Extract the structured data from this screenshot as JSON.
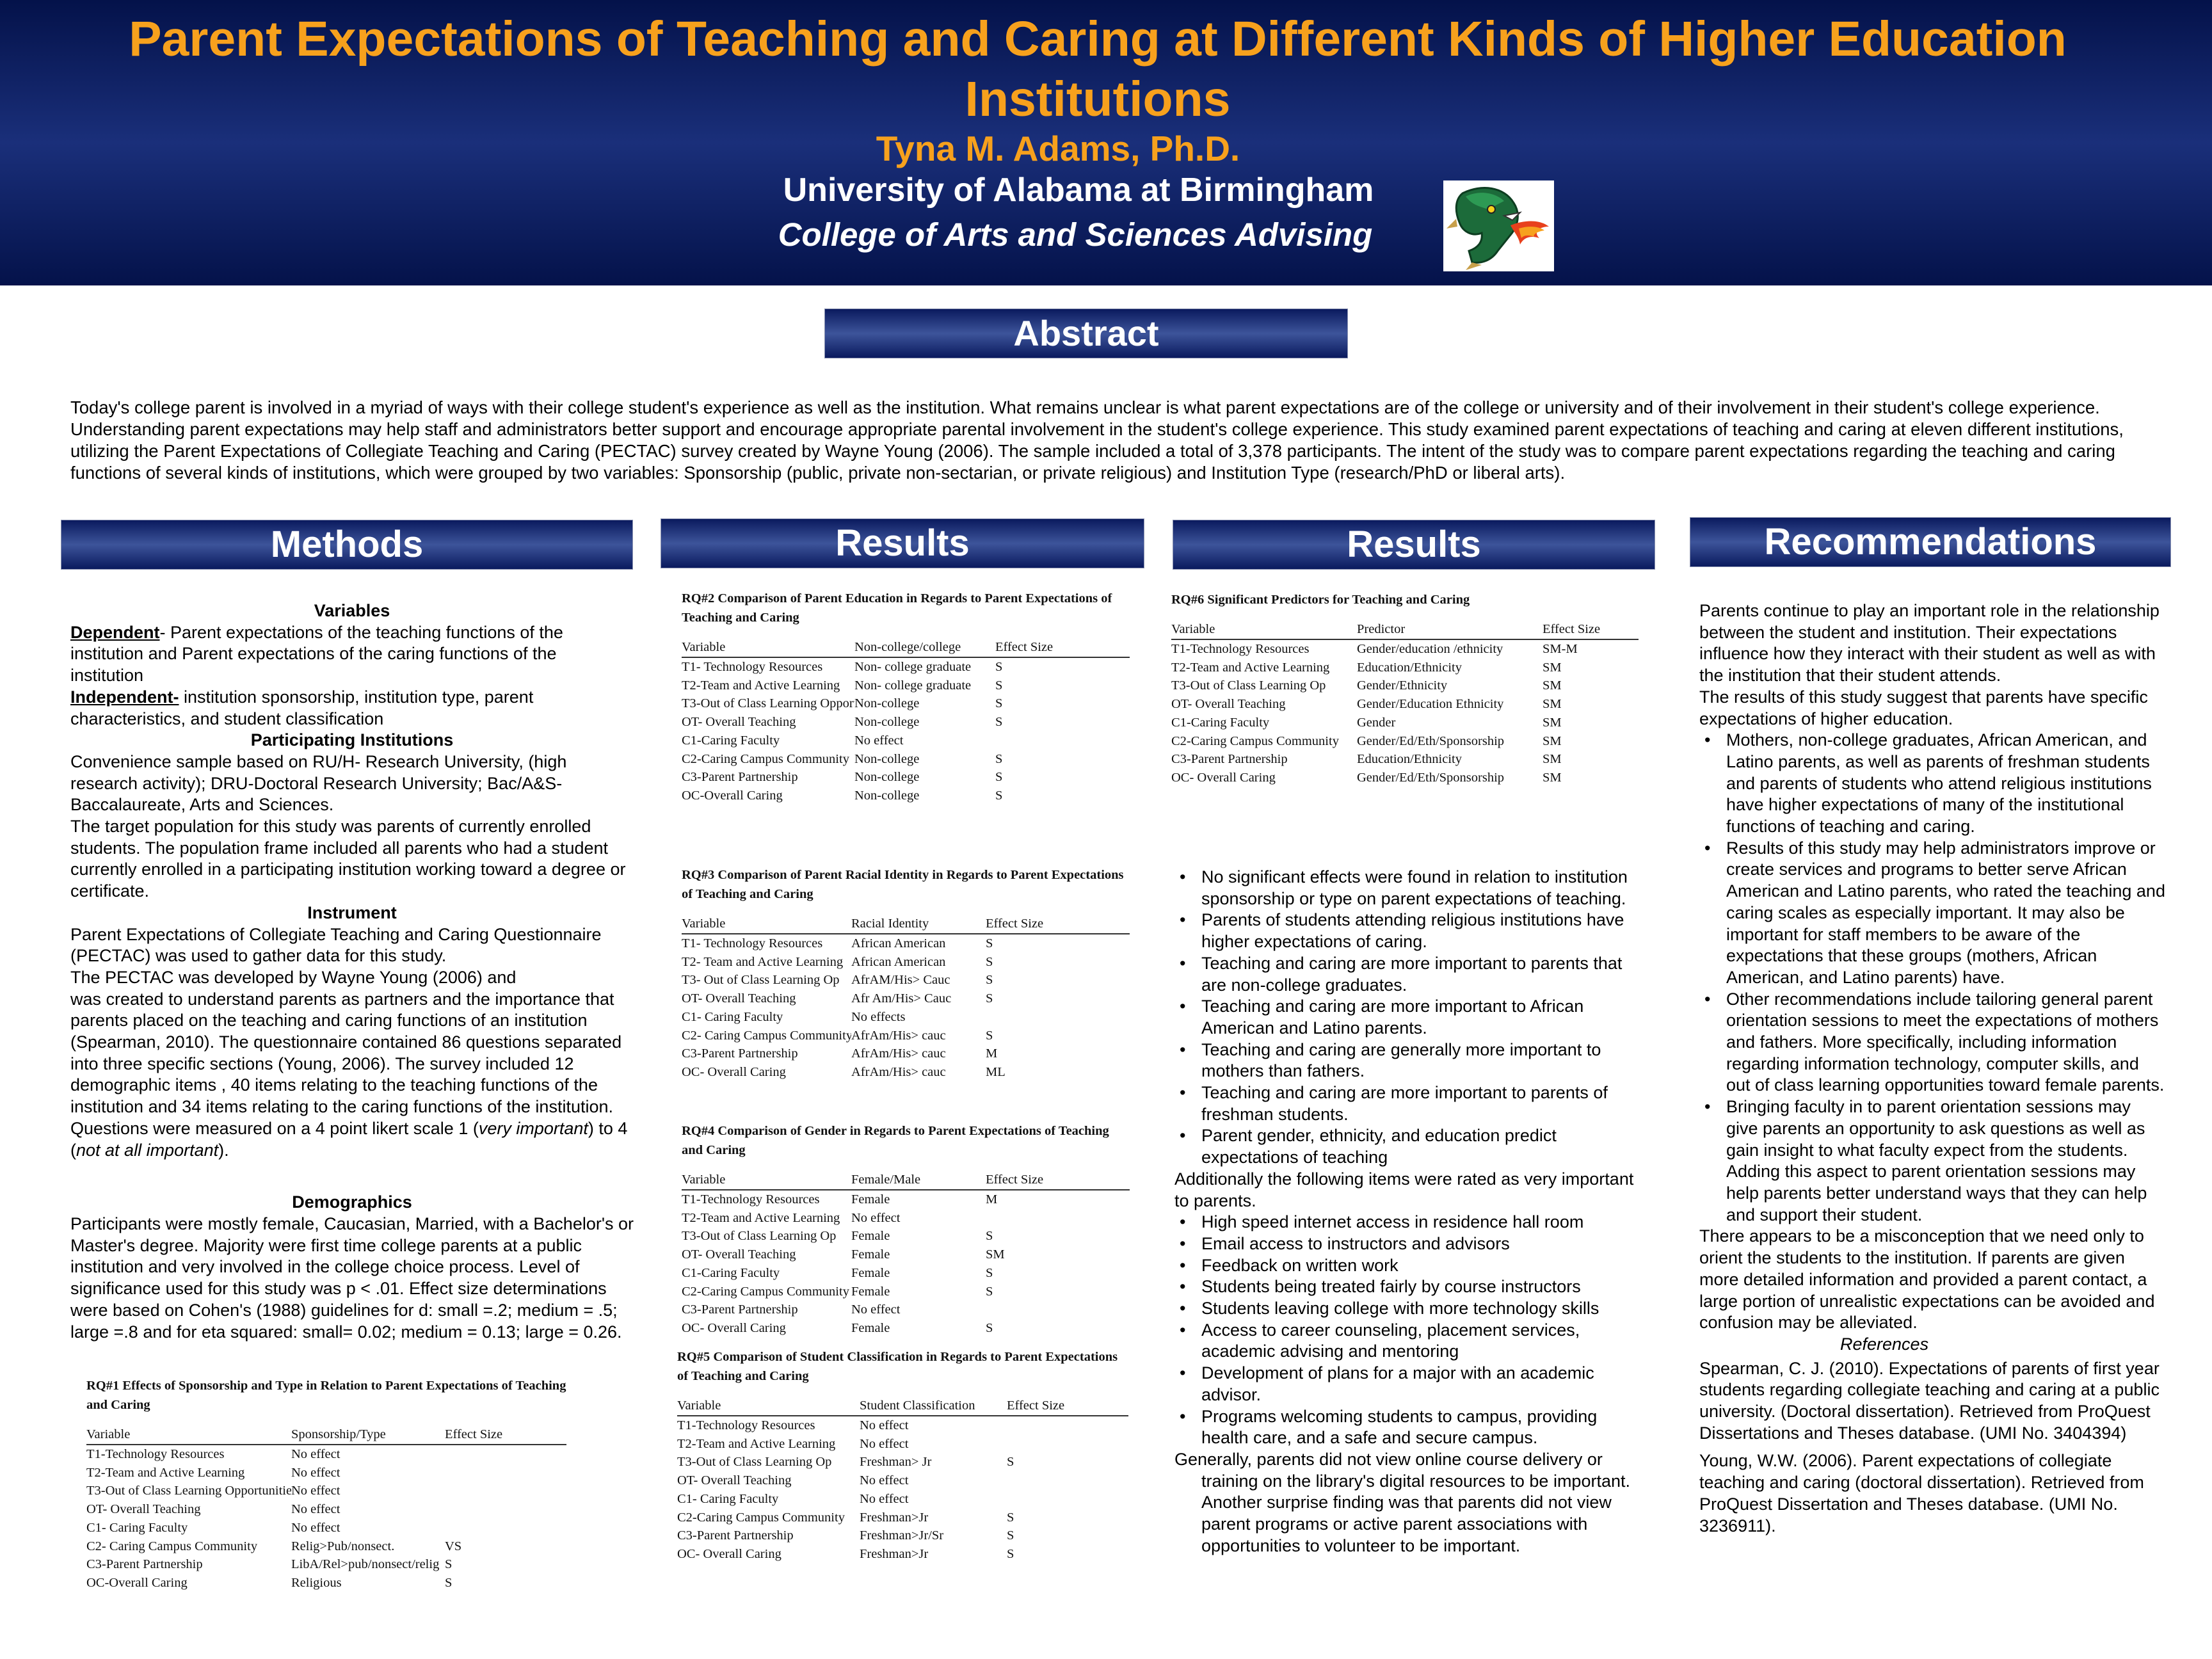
{
  "header": {
    "title": "Parent Expectations of Teaching and Caring at Different Kinds of Higher Education Institutions",
    "author": "Tyna M. Adams, Ph.D.",
    "university": "University of Alabama at Birmingham",
    "college": "College of Arts and Sciences Advising",
    "logo_icon": "dragon-logo-icon"
  },
  "sections": {
    "abstract_title": "Abstract",
    "abstract_text": "Today's college parent is involved in a myriad of ways with their college student's experience as well as the institution. What remains unclear is what parent expectations are of the college or university and of their involvement in their student's college experience. Understanding parent expectations may help staff and administrators better support and encourage appropriate parental involvement in the student's college experience. This study examined parent expectations of teaching and caring at eleven different institutions, utilizing the Parent Expectations of Collegiate Teaching and Caring (PECTAC) survey created by Wayne Young (2006). The sample included a total of 3,378 participants. The intent of the study was to compare parent expectations regarding the teaching and caring functions of several kinds of institutions, which were grouped by two variables: Sponsorship (public, private non-sectarian, or private religious) and Institution Type (research/PhD or liberal arts).",
    "methods_title": "Methods",
    "results_title_1": "Results",
    "results_title_2": "Results",
    "recommendations_title": "Recommendations"
  },
  "methods": {
    "variables_heading": "Variables",
    "dependent_label": "Dependent",
    "dependent_text": "- Parent expectations of the teaching functions of the institution and Parent expectations of the caring functions of the institution",
    "independent_label": "Independent-",
    "independent_text": " institution sponsorship, institution type, parent characteristics, and student classification",
    "participating_heading": "Participating Institutions",
    "participating_text": "Convenience sample based on RU/H- Research University, (high research activity); DRU-Doctoral Research University; Bac/A&S- Baccalaureate, Arts and Sciences.",
    "target_text": "The target population for this study was parents of currently enrolled students. The population frame included all parents who had a student currently enrolled in a participating institution working toward a degree or certificate.",
    "instrument_heading": "Instrument",
    "instrument_p1": " Parent Expectations of Collegiate Teaching and Caring Questionnaire (PECTAC) was used to gather data for this study.",
    "instrument_p2": "The PECTAC was developed by Wayne Young (2006) and",
    "instrument_p3": " was created to understand parents as partners and the importance that parents placed on the teaching and caring functions of an institution (Spearman, 2010). The questionnaire contained 86 questions separated into three specific sections (Young, 2006). The survey included 12 demographic items , 40 items relating to the teaching functions of the institution and 34 items relating to the caring functions of the institution. Questions were measured on a 4 point likert scale 1 (",
    "instrument_em1": "very important",
    "instrument_p4": ") to 4 (",
    "instrument_em2": "not at all important",
    "instrument_p5": ").",
    "demographics_heading": "Demographics",
    "demographics_text": "Participants were mostly female, Caucasian, Married, with a Bachelor's or Master's degree. Majority were first time college parents at a public institution and very involved in the college choice process.  Level of significance used for this study was p < .01. Effect size determinations were based on Cohen's (1988) guidelines for d: small =.2; medium = .5; large =.8 and for eta squared: small= 0.02; medium = 0.13; large = 0.26."
  },
  "tables": {
    "rq1": {
      "caption": "RQ#1 Effects of Sponsorship and Type in Relation to Parent Expectations of Teaching and Caring",
      "headers": [
        "Variable",
        "Sponsorship/Type",
        "Effect Size"
      ],
      "rows": [
        [
          "T1-Technology Resources",
          "No effect",
          ""
        ],
        [
          "T2-Team and Active Learning",
          "No effect",
          ""
        ],
        [
          "T3-Out of Class Learning Opportunities",
          "No effect",
          ""
        ],
        [
          "OT- Overall Teaching",
          "No effect",
          ""
        ],
        [
          "C1- Caring Faculty",
          "No effect",
          ""
        ],
        [
          "C2- Caring Campus Community",
          "Relig>Pub/nonsect.",
          "VS"
        ],
        [
          "C3-Parent Partnership",
          "LibA/Rel>pub/nonsect/relig",
          "S"
        ],
        [
          "OC-Overall Caring",
          "Religious",
          "S"
        ]
      ]
    },
    "rq2": {
      "caption": "RQ#2 Comparison of Parent Education in Regards to Parent Expectations of Teaching and Caring",
      "headers": [
        "Variable",
        "Non-college/college",
        "Effect Size"
      ],
      "rows": [
        [
          "T1- Technology Resources",
          "Non- college graduate",
          "S"
        ],
        [
          "T2-Team and Active Learning",
          "Non- college graduate",
          "S"
        ],
        [
          "T3-Out of Class Learning Opportunities",
          "Non-college",
          "S"
        ],
        [
          "OT- Overall Teaching",
          "Non-college",
          "S"
        ],
        [
          "C1-Caring Faculty",
          "No effect",
          ""
        ],
        [
          "C2-Caring Campus Community",
          "Non-college",
          "S"
        ],
        [
          "C3-Parent Partnership",
          "Non-college",
          "S"
        ],
        [
          "OC-Overall Caring",
          "Non-college",
          "S"
        ]
      ]
    },
    "rq3": {
      "caption": "RQ#3 Comparison of Parent Racial Identity in Regards to Parent Expectations of Teaching and Caring",
      "headers": [
        "Variable",
        "Racial Identity",
        "Effect Size"
      ],
      "rows": [
        [
          "T1- Technology Resources",
          "African American",
          "S"
        ],
        [
          "T2- Team and Active Learning",
          "African American",
          "S"
        ],
        [
          "T3- Out of Class Learning Op",
          "AfrAM/His> Cauc",
          "S"
        ],
        [
          "OT- Overall Teaching",
          "Afr Am/His> Cauc",
          "S"
        ],
        [
          "C1- Caring Faculty",
          "No effects",
          ""
        ],
        [
          "C2- Caring Campus Community",
          "AfrAm/His> cauc",
          "S"
        ],
        [
          "C3-Parent Partnership",
          "AfrAm/His> cauc",
          "M"
        ],
        [
          "OC- Overall Caring",
          "AfrAm/His> cauc",
          "ML"
        ]
      ]
    },
    "rq4": {
      "caption": "RQ#4 Comparison of Gender in Regards to Parent Expectations of Teaching and Caring",
      "headers": [
        "Variable",
        "Female/Male",
        "Effect Size"
      ],
      "rows": [
        [
          "T1-Technology Resources",
          "Female",
          "M"
        ],
        [
          "T2-Team and Active Learning",
          "No effect",
          ""
        ],
        [
          "T3-Out of Class Learning Op",
          "Female",
          "S"
        ],
        [
          "OT- Overall Teaching",
          "Female",
          "SM"
        ],
        [
          "C1-Caring Faculty",
          "Female",
          "S"
        ],
        [
          "C2-Caring Campus Community",
          "Female",
          "S"
        ],
        [
          "C3-Parent Partnership",
          "No effect",
          ""
        ],
        [
          "OC- Overall Caring",
          "Female",
          "S"
        ]
      ]
    },
    "rq5": {
      "caption": "RQ#5 Comparison of Student Classification in Regards to Parent Expectations of Teaching and Caring",
      "headers": [
        "Variable",
        "Student Classification",
        "Effect Size"
      ],
      "rows": [
        [
          "T1-Technology Resources",
          "No effect",
          ""
        ],
        [
          "T2-Team and Active Learning",
          "No effect",
          ""
        ],
        [
          "T3-Out of Class Learning Op",
          "Freshman> Jr",
          "S"
        ],
        [
          "OT- Overall Teaching",
          "No effect",
          ""
        ],
        [
          "C1- Caring Faculty",
          "No effect",
          ""
        ],
        [
          "C2-Caring Campus Community",
          "Freshman>Jr",
          "S"
        ],
        [
          "C3-Parent Partnership",
          "Freshman>Jr/Sr",
          "S"
        ],
        [
          "OC- Overall Caring",
          "Freshman>Jr",
          "S"
        ]
      ]
    },
    "rq6": {
      "caption": "RQ#6 Significant Predictors for Teaching and Caring",
      "headers": [
        "Variable",
        "Predictor",
        "Effect Size"
      ],
      "rows": [
        [
          "T1-Technology Resources",
          "Gender/education /ethnicity",
          "SM-M"
        ],
        [
          "T2-Team and Active Learning",
          "Education/Ethnicity",
          "SM"
        ],
        [
          "T3-Out of Class Learning Op",
          "Gender/Ethnicity",
          "SM"
        ],
        [
          "OT- Overall Teaching",
          "Gender/Education Ethnicity",
          "SM"
        ],
        [
          "C1-Caring Faculty",
          "Gender",
          "SM"
        ],
        [
          "C2-Caring Campus Community",
          "Gender/Ed/Eth/Sponsorship",
          "SM"
        ],
        [
          "C3-Parent Partnership",
          "Education/Ethnicity",
          "SM"
        ],
        [
          "OC- Overall Caring",
          "Gender/Ed/Eth/Sponsorship",
          "SM"
        ]
      ]
    }
  },
  "results2": {
    "bullets_a": [
      "No significant effects were found  in relation to institution sponsorship or type on parent expectations of teaching.",
      "Parents of students attending religious institutions have higher expectations of caring.",
      "Teaching and caring are more important to parents that are non-college graduates.",
      "Teaching and caring are more important to African American and Latino parents.",
      "Teaching and caring are generally more important to mothers than fathers.",
      "Teaching and caring are more important to parents of freshman students.",
      "Parent gender, ethnicity, and education predict expectations of teaching"
    ],
    "additional_text": "Additionally the following items were rated as very important to parents.",
    "bullets_b": [
      "High speed internet access in residence hall room",
      "Email access to instructors and advisors",
      "Feedback on written work",
      "Students being treated fairly by course instructors",
      "Students leaving college with more technology skills",
      "Access to career counseling, placement services, academic advising and mentoring",
      "Development of plans for a major with an academic advisor.",
      "Programs welcoming students to campus, providing health care, and a safe and secure campus."
    ],
    "closing_text": "Generally, parents did not view online course delivery or training on the library's digital resources to be important. Another surprise finding was that parents did not view parent programs or active parent associations with opportunities to volunteer to be important."
  },
  "recommendations": {
    "intro": "Parents continue to play an important role in the relationship between the student and institution. Their expectations influence how they interact with their student as well as with the institution that their student attends.",
    "intro2": "The results of this study suggest that parents have specific expectations of higher education.",
    "bullets": [
      "Mothers, non-college graduates, African American, and Latino parents, as well as parents of freshman students and parents of students who attend religious institutions have higher expectations of many of the institutional functions of teaching and caring.",
      " Results of this study may help administrators improve or create services and programs to better serve African American and Latino parents, who rated the teaching and caring scales as especially important. It may also be important for staff members to be aware of the expectations that these groups (mothers, African American, and Latino parents) have.",
      " Other recommendations include tailoring general parent orientation sessions to meet the expectations of mothers and fathers. More specifically, including information regarding information technology, computer skills, and out of class learning opportunities toward female parents.",
      "Bringing faculty in to parent orientation sessions may give parents an opportunity to ask questions as well as gain insight to what faculty expect from the students. Adding this aspect to parent orientation sessions may help parents better understand ways that they can help and support their student."
    ],
    "misconception": "There appears to be a misconception that we need only to orient the students to the institution. If parents are given more detailed information and provided a parent contact, a large portion of unrealistic expectations can be avoided and confusion may be alleviated.",
    "references_heading": "References",
    "ref1": "Spearman, C. J. (2010). Expectations of parents of first year students regarding collegiate teaching and caring at a public university. (Doctoral dissertation). Retrieved from ProQuest Dissertations and Theses database. (UMI No. 3404394)",
    "ref2": "Young, W.W. (2006). Parent expectations of collegiate teaching and caring (doctoral dissertation). Retrieved from ProQuest Dissertation and Theses database. (UMI No. 3236911)."
  },
  "colors": {
    "header_bg": "#04124a",
    "title_orange": "#f7a11d",
    "bar_navy": "#0a1a5e"
  }
}
